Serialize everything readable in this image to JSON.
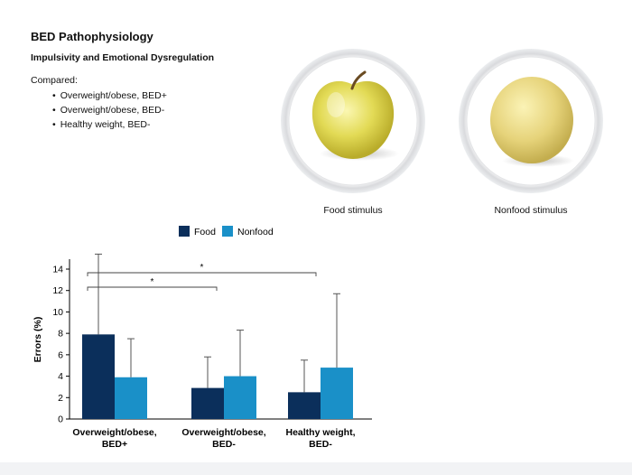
{
  "header": {
    "title": "BED Pathophysiology",
    "subtitle": "Impulsivity and Emotional Dysregulation",
    "compared_label": "Compared:",
    "groups": [
      "Overweight/obese, BED+",
      "Overweight/obese, BED-",
      "Healthy weight, BED-"
    ]
  },
  "stimuli": {
    "food_label": "Food stimulus",
    "nonfood_label": "Nonfood stimulus"
  },
  "chart_data": {
    "type": "bar",
    "categories": [
      [
        "Overweight/obese,",
        "BED+"
      ],
      [
        "Overweight/obese,",
        "BED-"
      ],
      [
        "Healthy weight,",
        "BED-"
      ]
    ],
    "series": [
      {
        "name": "Food",
        "values": [
          7.9,
          2.9,
          2.5
        ],
        "errors": [
          7.5,
          2.9,
          3.0
        ],
        "color": "#0b2f5b"
      },
      {
        "name": "Nonfood",
        "values": [
          3.9,
          4.0,
          4.8
        ],
        "errors": [
          3.6,
          4.3,
          6.9
        ],
        "color": "#1a90c8"
      }
    ],
    "ylabel": "Errors (%)",
    "ylim": [
      0,
      14
    ],
    "yticks": [
      0,
      2,
      4,
      6,
      8,
      10,
      12,
      14
    ],
    "legend": "top",
    "significance": [
      {
        "from": 0,
        "to": 1,
        "label": "*"
      },
      {
        "from": 0,
        "to": 2,
        "label": "*"
      }
    ]
  }
}
